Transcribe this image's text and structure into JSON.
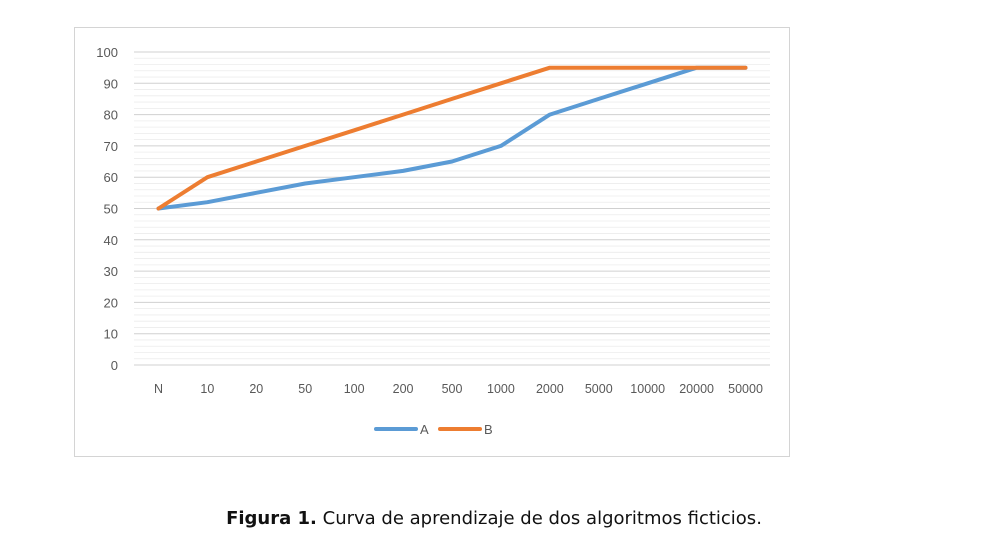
{
  "figure": {
    "label": "Figura 1.",
    "text": "Curva de aprendizaje de dos algoritmos ficticios."
  },
  "chart_data": {
    "type": "line",
    "title": "",
    "xlabel": "",
    "ylabel": "",
    "categories": [
      "N",
      "10",
      "20",
      "50",
      "100",
      "200",
      "500",
      "1000",
      "2000",
      "5000",
      "10000",
      "20000",
      "50000"
    ],
    "ylim": [
      0,
      100
    ],
    "yticks": [
      0,
      10,
      20,
      30,
      40,
      50,
      60,
      70,
      80,
      90,
      100
    ],
    "grid": true,
    "legend_position": "bottom",
    "series": [
      {
        "name": "A",
        "color": "#5b9bd5",
        "values": [
          50,
          52,
          55,
          58,
          60,
          62,
          65,
          70,
          80,
          85,
          90,
          95,
          95
        ]
      },
      {
        "name": "B",
        "color": "#ed7d31",
        "values": [
          50,
          60,
          65,
          70,
          75,
          80,
          85,
          90,
          95,
          95,
          95,
          95,
          95
        ]
      }
    ]
  }
}
